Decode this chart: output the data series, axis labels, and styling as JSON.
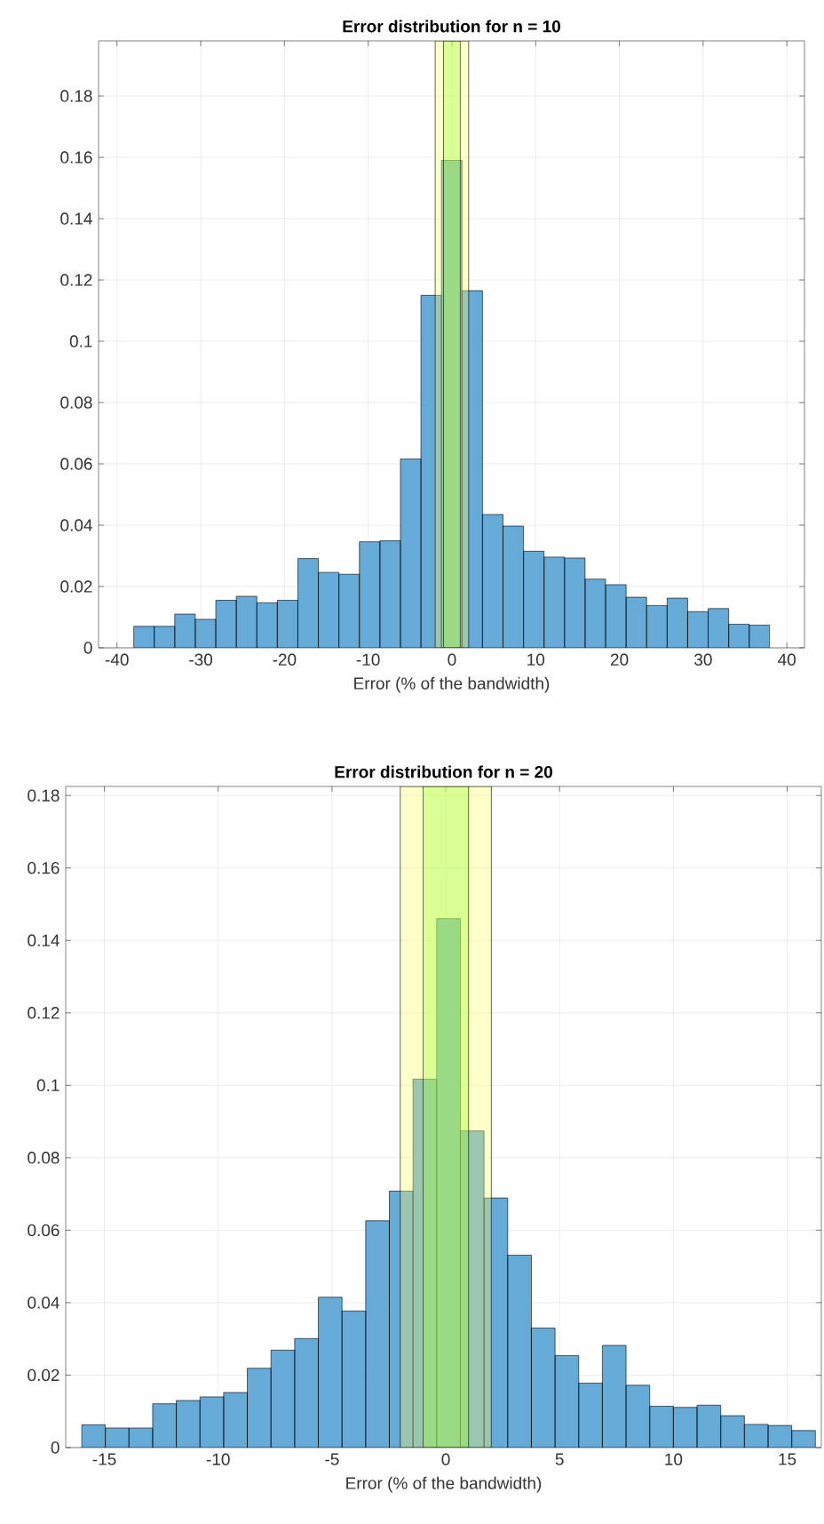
{
  "chart_data": [
    {
      "type": "histogram",
      "title": "Error distribution for n = 10",
      "xlabel": "Error (% of the bandwidth)",
      "bins": [
        -38,
        -35.55,
        -33.1,
        -30.65,
        -28.2,
        -25.75,
        -23.3,
        -20.85,
        -18.4,
        -15.95,
        -13.5,
        -11.05,
        -8.6,
        -6.15,
        -3.7,
        -1.25,
        1.2,
        3.65,
        6.1,
        8.55,
        11,
        13.45,
        15.9,
        18.35,
        20.8,
        23.25,
        25.7,
        28.15,
        30.6,
        33.05,
        35.5,
        37.95
      ],
      "values": [
        0.007,
        0.007,
        0.011,
        0.0093,
        0.0155,
        0.0168,
        0.0147,
        0.0155,
        0.0291,
        0.0246,
        0.024,
        0.0346,
        0.0349,
        0.0616,
        0.115,
        0.159,
        0.1165,
        0.0435,
        0.0397,
        0.0315,
        0.0296,
        0.0293,
        0.0224,
        0.0206,
        0.0165,
        0.0138,
        0.0162,
        0.0118,
        0.0128,
        0.0077,
        0.0074
      ],
      "color": "#66aad7",
      "xlim": [
        -42.2,
        42.1
      ],
      "ylim": [
        0,
        0.198
      ],
      "xticks": [
        -40,
        -30,
        -20,
        -10,
        0,
        10,
        20,
        30,
        40
      ],
      "yticks": [
        0,
        0.02,
        0.04,
        0.06,
        0.08,
        0.1,
        0.12,
        0.14,
        0.16,
        0.18
      ],
      "grid": true,
      "bands": [
        {
          "axis": "x",
          "from": -2,
          "to": 2,
          "color": "#ffff66"
        },
        {
          "axis": "x",
          "from": -1,
          "to": 1,
          "color": "#99ff33"
        }
      ]
    },
    {
      "type": "histogram",
      "title": "Error distribution for n = 20",
      "xlabel": "Error (% of the bandwidth)",
      "bins": [
        -16,
        -14.96,
        -13.92,
        -12.88,
        -11.84,
        -10.8,
        -9.76,
        -8.72,
        -7.68,
        -6.64,
        -5.6,
        -4.56,
        -3.52,
        -2.48,
        -1.44,
        -0.4,
        0.64,
        1.68,
        2.72,
        3.76,
        4.8,
        5.84,
        6.88,
        7.92,
        8.96,
        10,
        11.04,
        12.08,
        13.12,
        14.16,
        15.2,
        16.24
      ],
      "values": [
        0.0063,
        0.0054,
        0.0054,
        0.0121,
        0.013,
        0.014,
        0.0152,
        0.0219,
        0.0269,
        0.0301,
        0.0415,
        0.0377,
        0.0626,
        0.0708,
        0.1017,
        0.146,
        0.0874,
        0.0689,
        0.0531,
        0.033,
        0.0254,
        0.0178,
        0.0282,
        0.0172,
        0.0114,
        0.0111,
        0.0117,
        0.0088,
        0.0064,
        0.0061,
        0.0047
      ],
      "color": "#66aad7",
      "xlim": [
        -16.7,
        16.5
      ],
      "ylim": [
        0,
        0.1825
      ],
      "xticks": [
        -15,
        -10,
        -5,
        0,
        5,
        10,
        15
      ],
      "yticks": [
        0,
        0.02,
        0.04,
        0.06,
        0.08,
        0.1,
        0.12,
        0.14,
        0.16,
        0.18
      ],
      "grid": true,
      "bands": [
        {
          "axis": "x",
          "from": -2,
          "to": 2,
          "color": "#ffff66"
        },
        {
          "axis": "x",
          "from": -1,
          "to": 1,
          "color": "#99ff33"
        }
      ]
    }
  ]
}
